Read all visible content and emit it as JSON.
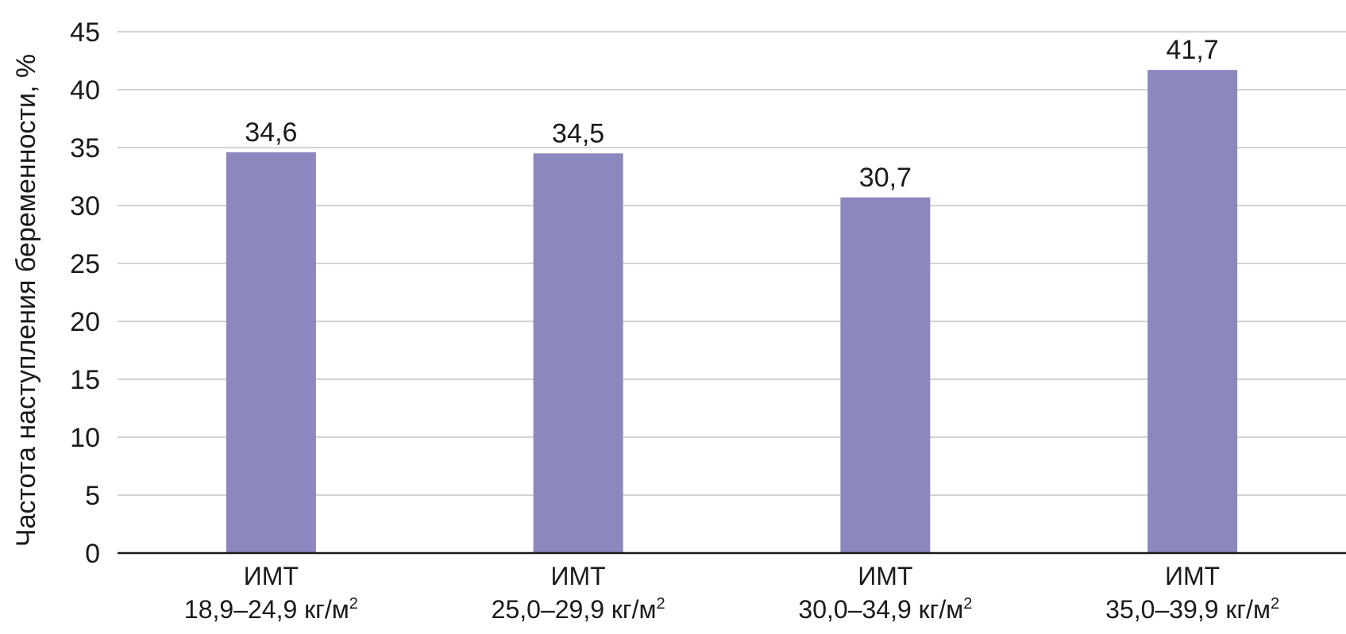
{
  "chart_data": {
    "type": "bar",
    "title": "",
    "xlabel": "",
    "ylabel": "Частота наступления беременности, %",
    "ylim": [
      0,
      45
    ],
    "yticks": [
      0,
      5,
      10,
      15,
      20,
      25,
      30,
      35,
      40,
      45
    ],
    "grid": true,
    "legend": "none",
    "categories": [
      {
        "line1": "ИМТ",
        "line2": "18,9–24,9 кг/м",
        "sup": "2"
      },
      {
        "line1": "ИМТ",
        "line2": "25,0–29,9 кг/м",
        "sup": "2"
      },
      {
        "line1": "ИМТ",
        "line2": "30,0–34,9 кг/м",
        "sup": "2"
      },
      {
        "line1": "ИМТ",
        "line2": "35,0–39,9 кг/м",
        "sup": "2"
      }
    ],
    "values": [
      34.6,
      34.5,
      30.7,
      41.7
    ],
    "value_labels": [
      "34,6",
      "34,5",
      "30,7",
      "41,7"
    ],
    "colors": {
      "bar": "#8b87bf",
      "grid": "#c4c4c4",
      "axis": "#1a1a1a"
    }
  }
}
